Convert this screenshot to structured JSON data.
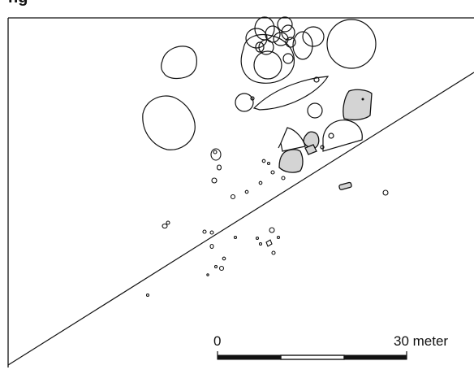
{
  "title_partial": "ng",
  "scale": {
    "start_label": "0",
    "end_label": "30 meter"
  },
  "colors": {
    "ink": "#111111",
    "grey_fill": "#d4d4d4",
    "background": "#ffffff"
  }
}
